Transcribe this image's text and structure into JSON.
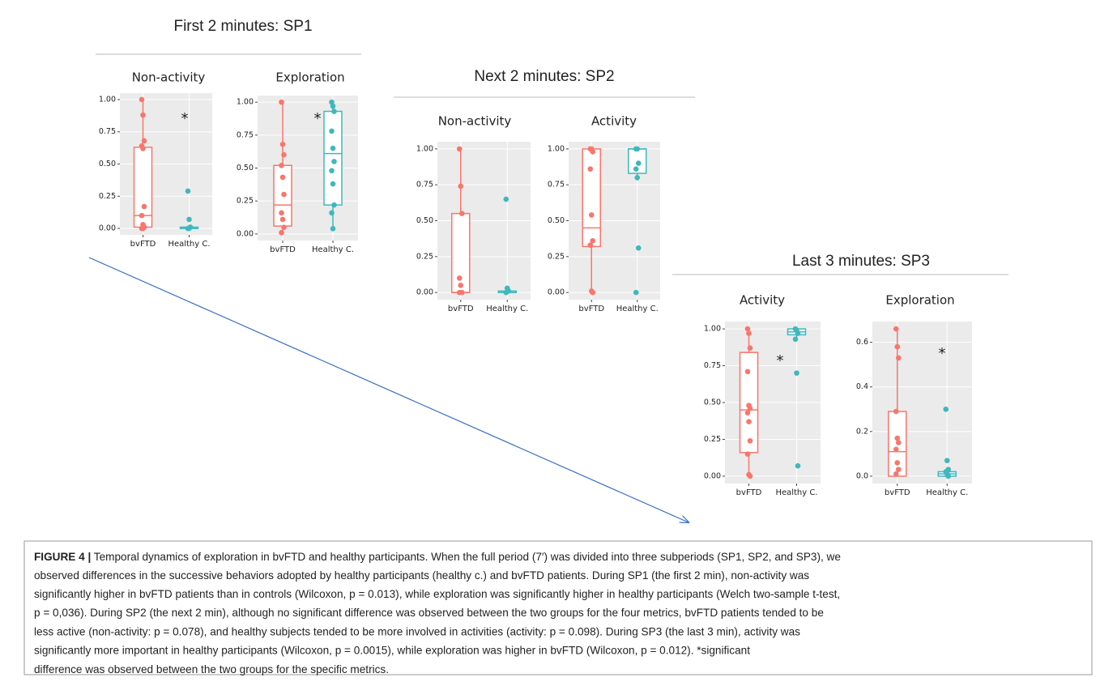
{
  "sections": [
    {
      "title": "First 2 minutes: SP1"
    },
    {
      "title": "Next 2 minutes: SP2"
    },
    {
      "title": "Last 3 minutes: SP3"
    }
  ],
  "chart_data": [
    {
      "type": "box",
      "title": "Non-activity",
      "categories": [
        "bvFTD",
        "Healthy C."
      ],
      "ylim": [
        -0.05,
        1.05
      ],
      "yticks": [
        {
          "value": 0,
          "label": "0.00"
        },
        {
          "value": 0.25,
          "label": "0.25"
        },
        {
          "value": 0.5,
          "label": "0.50"
        },
        {
          "value": 0.75,
          "label": "0.75"
        },
        {
          "value": 1,
          "label": "1.00"
        }
      ],
      "grid": true,
      "annotation": "*",
      "boxes": [
        {
          "color": "#f8766d",
          "min": 0,
          "q1": 0.01,
          "median": 0.1,
          "q3": 0.63,
          "max": 1,
          "points": [
            1,
            0.88,
            0.68,
            0.64,
            0.62,
            0.17,
            0.1,
            0.03,
            0.01,
            0,
            0
          ]
        },
        {
          "color": "#3fb8bd",
          "min": 0,
          "q1": 0,
          "median": 0,
          "q3": 0.01,
          "max": 0.02,
          "points": [
            0.29,
            0.07,
            0.01,
            0,
            0
          ]
        }
      ]
    },
    {
      "type": "box",
      "title": "Exploration",
      "categories": [
        "bvFTD",
        "Healthy C."
      ],
      "ylim": [
        -0.05,
        1.05
      ],
      "yticks": [
        {
          "value": 0,
          "label": "0.00"
        },
        {
          "value": 0.25,
          "label": "0.25"
        },
        {
          "value": 0.5,
          "label": "0.50"
        },
        {
          "value": 0.75,
          "label": "0.75"
        },
        {
          "value": 1,
          "label": "1.00"
        }
      ],
      "grid": true,
      "annotation": "*",
      "boxes": [
        {
          "color": "#f8766d",
          "min": 0,
          "q1": 0.06,
          "median": 0.22,
          "q3": 0.52,
          "max": 1,
          "points": [
            1,
            0.68,
            0.6,
            0.52,
            0.43,
            0.3,
            0.16,
            0.11,
            0.05,
            0.01
          ]
        },
        {
          "color": "#3fb8bd",
          "min": 0.03,
          "q1": 0.22,
          "median": 0.61,
          "q3": 0.93,
          "max": 1,
          "points": [
            1,
            0.97,
            0.93,
            0.78,
            0.65,
            0.55,
            0.48,
            0.38,
            0.22,
            0.16,
            0.04
          ]
        }
      ]
    },
    {
      "type": "box",
      "title": "Non-activity",
      "categories": [
        "bvFTD",
        "Healthy C."
      ],
      "ylim": [
        -0.05,
        1.05
      ],
      "yticks": [
        {
          "value": 0,
          "label": "0.00"
        },
        {
          "value": 0.25,
          "label": "0.25"
        },
        {
          "value": 0.5,
          "label": "0.50"
        },
        {
          "value": 0.75,
          "label": "0.75"
        },
        {
          "value": 1,
          "label": "1.00"
        }
      ],
      "grid": true,
      "boxes": [
        {
          "color": "#f8766d",
          "min": 0,
          "q1": 0,
          "median": 0,
          "q3": 0.55,
          "max": 1,
          "points": [
            1,
            0.74,
            0.55,
            0.1,
            0.05,
            0,
            0
          ]
        },
        {
          "color": "#3fb8bd",
          "min": 0,
          "q1": 0,
          "median": 0,
          "q3": 0.01,
          "max": 0.03,
          "points": [
            0.65,
            0.03,
            0.01,
            0
          ]
        }
      ]
    },
    {
      "type": "box",
      "title": "Activity",
      "categories": [
        "bvFTD",
        "Healthy C."
      ],
      "ylim": [
        -0.05,
        1.05
      ],
      "yticks": [
        {
          "value": 0,
          "label": "0.00"
        },
        {
          "value": 0.25,
          "label": "0.25"
        },
        {
          "value": 0.5,
          "label": "0.50"
        },
        {
          "value": 0.75,
          "label": "0.75"
        },
        {
          "value": 1,
          "label": "1.00"
        }
      ],
      "grid": true,
      "boxes": [
        {
          "color": "#f8766d",
          "min": 0,
          "q1": 0.32,
          "median": 0.45,
          "q3": 1,
          "max": 1,
          "points": [
            1,
            1,
            0.98,
            0.86,
            0.54,
            0.36,
            0.33,
            0.01,
            0
          ]
        },
        {
          "color": "#3fb8bd",
          "min": 0.78,
          "q1": 0.83,
          "median": 1,
          "q3": 1,
          "max": 1,
          "points": [
            1,
            1,
            0.9,
            0.86,
            0.8,
            0.31,
            0
          ]
        }
      ]
    },
    {
      "type": "box",
      "title": "Activity",
      "categories": [
        "bvFTD",
        "Healthy C."
      ],
      "ylim": [
        -0.05,
        1.05
      ],
      "yticks": [
        {
          "value": 0,
          "label": "0.00"
        },
        {
          "value": 0.25,
          "label": "0.25"
        },
        {
          "value": 0.5,
          "label": "0.50"
        },
        {
          "value": 0.75,
          "label": "0.75"
        },
        {
          "value": 1,
          "label": "1.00"
        }
      ],
      "grid": true,
      "annotation": "*",
      "boxes": [
        {
          "color": "#f8766d",
          "min": 0,
          "q1": 0.16,
          "median": 0.45,
          "q3": 0.84,
          "max": 1,
          "points": [
            1,
            0.97,
            0.87,
            0.71,
            0.48,
            0.46,
            0.43,
            0.37,
            0.24,
            0.15,
            0.01,
            0
          ]
        },
        {
          "color": "#3fb8bd",
          "min": 0.93,
          "q1": 0.96,
          "median": 0.98,
          "q3": 1,
          "max": 1,
          "points": [
            1,
            0.99,
            0.97,
            0.93,
            0.7,
            0.07
          ]
        }
      ]
    },
    {
      "type": "box",
      "title": "Exploration",
      "categories": [
        "bvFTD",
        "Healthy C."
      ],
      "ylim": [
        -0.033,
        0.693
      ],
      "yticks": [
        {
          "value": 0,
          "label": "0.0"
        },
        {
          "value": 0.2,
          "label": "0.2"
        },
        {
          "value": 0.4,
          "label": "0.4"
        },
        {
          "value": 0.6,
          "label": "0.6"
        }
      ],
      "grid": true,
      "annotation": "*",
      "boxes": [
        {
          "color": "#f8766d",
          "min": 0,
          "q1": 0,
          "median": 0.11,
          "q3": 0.29,
          "max": 0.66,
          "points": [
            0.66,
            0.58,
            0.53,
            0.29,
            0.17,
            0.15,
            0.12,
            0.06,
            0.03,
            0.01
          ]
        },
        {
          "color": "#3fb8bd",
          "min": 0,
          "q1": 0,
          "median": 0.01,
          "q3": 0.02,
          "max": 0.03,
          "points": [
            0.3,
            0.07,
            0.03,
            0.02,
            0.01,
            0
          ]
        }
      ]
    }
  ],
  "caption": {
    "label": "FIGURE 4 |",
    "lines": [
      " Temporal dynamics of exploration in bvFTD and healthy participants. When the full period (7′) was divided into three subperiods (SP1, SP2, and SP3), we",
      "observed differences in the successive behaviors adopted by healthy participants (healthy c.) and bvFTD patients. During SP1 (the first 2 min), non-activity was",
      "significantly higher in bvFTD patients than in controls (Wilcoxon, p = 0.013), while exploration was significantly higher in healthy participants (Welch two-sample t-test,",
      "p = 0,036). During SP2 (the next 2 min), although no significant difference was observed between the two groups for the four metrics, bvFTD patients tended to be",
      "less active (non-activity: p = 0.078), and healthy subjects tended to be more involved in activities (activity: p = 0.098). During SP3 (the last 3 min), activity was",
      "significantly more important in healthy participants (Wilcoxon, p = 0.0015), while exploration was higher in bvFTD (Wilcoxon, p = 0.012). *significant",
      "difference was observed between the two groups for the specific metrics."
    ]
  }
}
